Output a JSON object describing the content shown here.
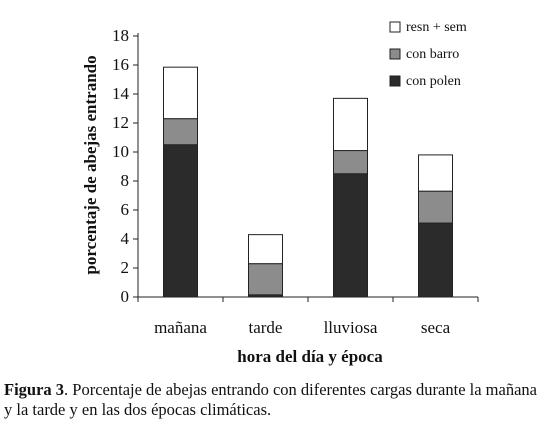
{
  "chart_data": {
    "type": "bar",
    "stacked": true,
    "categories": [
      "mañana",
      "tarde",
      "lluviosa",
      "seca"
    ],
    "series": [
      {
        "name": "con polen",
        "values": [
          10.5,
          0.15,
          8.5,
          5.1
        ],
        "color": "#2b2b2b"
      },
      {
        "name": "con barro",
        "values": [
          1.8,
          2.15,
          1.6,
          2.2
        ],
        "color": "#8c8c8c"
      },
      {
        "name": "resn + sem",
        "values": [
          3.55,
          2.0,
          3.6,
          2.5
        ],
        "color": "#ffffff"
      }
    ],
    "xlabel": "hora del día y época",
    "ylabel": "porcentaje de abejas entrando",
    "ylim": [
      0,
      18
    ],
    "yticks": [
      "0",
      "2",
      "4",
      "6",
      "8",
      "10",
      "12",
      "14",
      "16",
      "18"
    ],
    "grid": false,
    "legend_position": "top-right",
    "legend_order": [
      "resn + sem",
      "con barro",
      "con polen"
    ]
  },
  "caption": {
    "figure_label": "Figura 3",
    "text": ". Porcentaje de abejas entrando con diferentes cargas durante la mañana y la tarde y en las dos épocas climáticas."
  }
}
